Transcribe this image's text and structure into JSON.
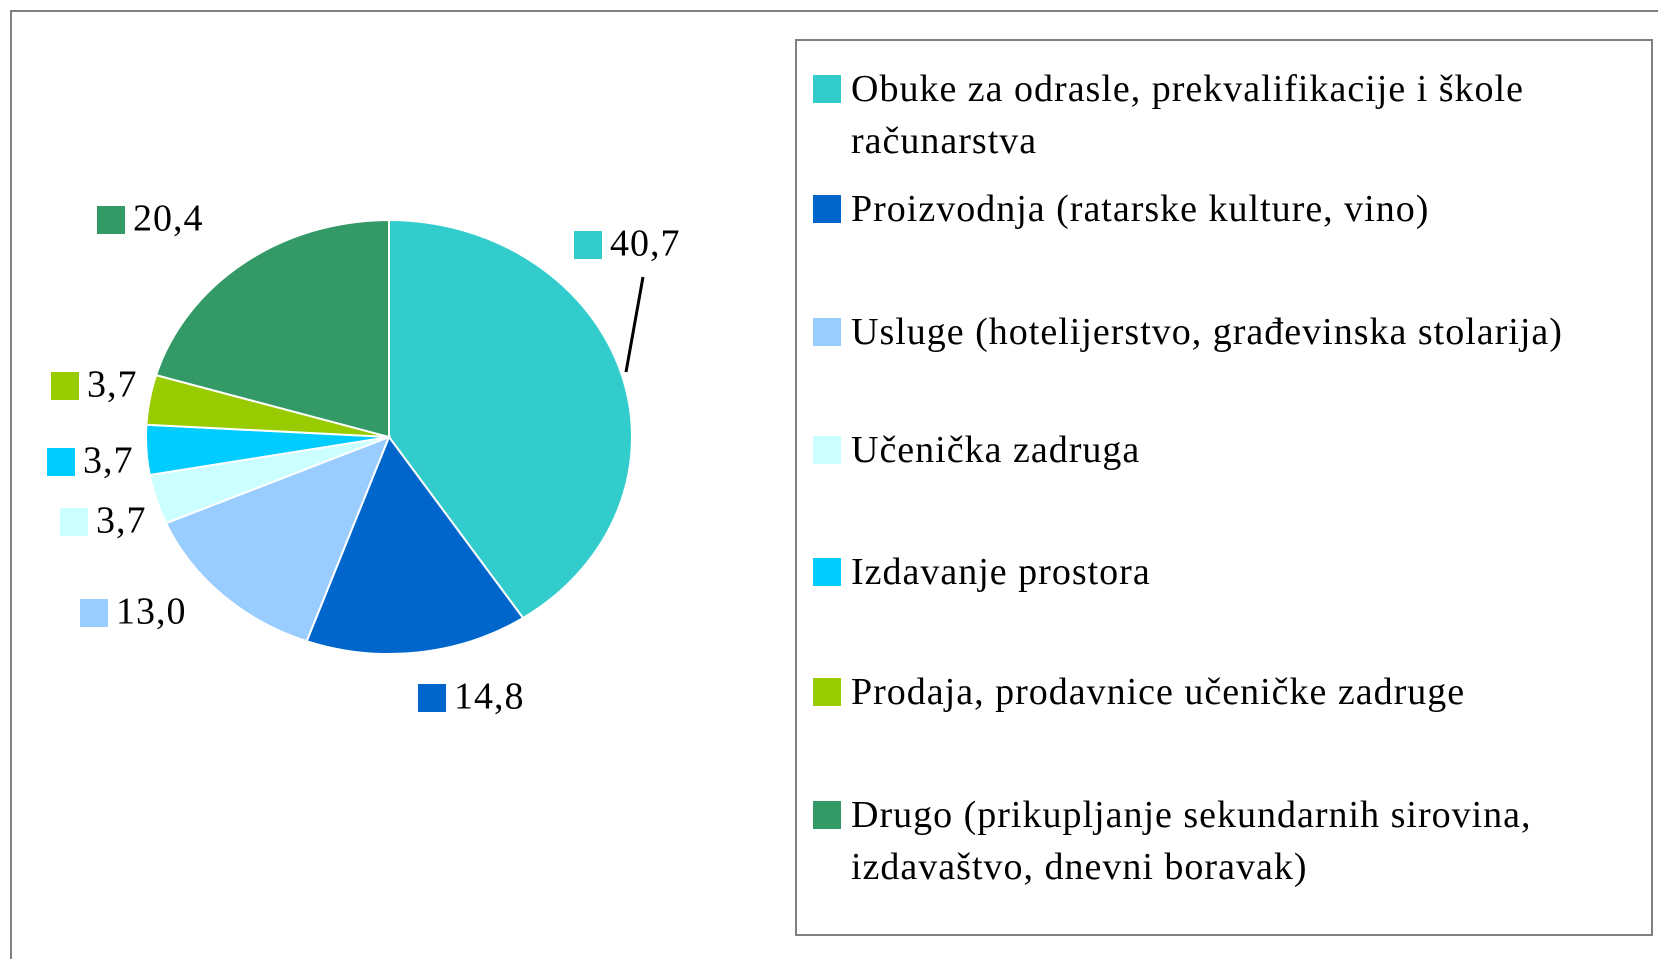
{
  "chart_data": {
    "type": "pie",
    "categories": [
      "Obuke za odrasle, prekvalifikacije i škole računarstva",
      "Proizvodnja (ratarske kulture, vino)",
      "Usluge (hotelijerstvo, građevinska stolarija)",
      "Učenička zadruga",
      "Izdavanje prostora",
      "Prodaja, prodavnice učeničke zadruge",
      "Drugo (prikupljanje sekundarnih sirovina, izdavaštvo, dnevni boravak)"
    ],
    "values": [
      40.7,
      14.8,
      13.0,
      3.7,
      3.7,
      3.7,
      20.4
    ],
    "value_labels": [
      "40,7",
      "14,8",
      "13,0",
      "3,7",
      "3,7",
      "3,7",
      "20,4"
    ],
    "colors": [
      "#33cccc",
      "#0066cc",
      "#99ccff",
      "#ccffff",
      "#00ccff",
      "#99cc00",
      "#339966"
    ],
    "legend": "right"
  }
}
